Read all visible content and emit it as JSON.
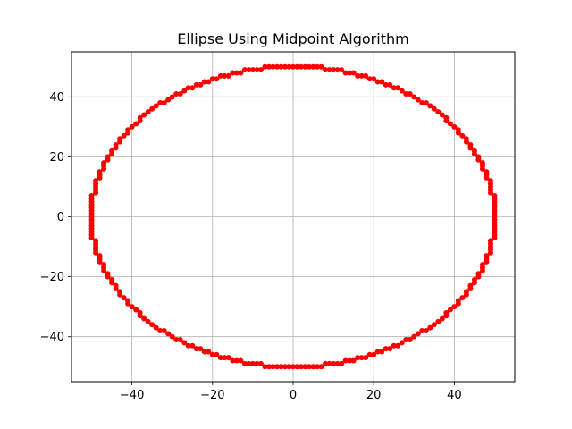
{
  "chart_data": {
    "type": "scatter",
    "title": "Ellipse Using Midpoint Algorithm",
    "xlabel": "",
    "ylabel": "",
    "xlim": [
      -55,
      55
    ],
    "ylim": [
      -55,
      55
    ],
    "xticks": [
      -40,
      -20,
      0,
      20,
      40
    ],
    "yticks": [
      -40,
      -20,
      0,
      20,
      40
    ],
    "xtick_labels": [
      "−40",
      "−20",
      "0",
      "20",
      "40"
    ],
    "ytick_labels": [
      "−40",
      "−20",
      "0",
      "20",
      "40"
    ],
    "grid": true,
    "marker_color": "#ff0000",
    "series": [
      {
        "semi_axis_x": 50,
        "semi_axis_y": 50,
        "center": [
          0,
          0
        ],
        "points": [
          [
            0,
            50
          ],
          [
            1,
            50
          ],
          [
            2,
            50
          ],
          [
            3,
            50
          ],
          [
            4,
            50
          ],
          [
            5,
            50
          ],
          [
            6,
            50
          ],
          [
            7,
            50
          ],
          [
            8,
            49
          ],
          [
            9,
            49
          ],
          [
            10,
            49
          ],
          [
            11,
            49
          ],
          [
            12,
            49
          ],
          [
            13,
            48
          ],
          [
            14,
            48
          ],
          [
            15,
            48
          ],
          [
            16,
            47
          ],
          [
            17,
            47
          ],
          [
            18,
            47
          ],
          [
            19,
            46
          ],
          [
            20,
            46
          ],
          [
            21,
            45
          ],
          [
            22,
            45
          ],
          [
            23,
            44
          ],
          [
            24,
            44
          ],
          [
            25,
            43
          ],
          [
            26,
            43
          ],
          [
            27,
            42
          ],
          [
            28,
            41
          ],
          [
            29,
            41
          ],
          [
            30,
            40
          ],
          [
            31,
            39
          ],
          [
            32,
            38
          ],
          [
            33,
            38
          ],
          [
            34,
            37
          ],
          [
            35,
            36
          ],
          [
            36,
            35
          ],
          [
            37,
            34
          ],
          [
            38,
            33
          ],
          [
            38,
            32
          ],
          [
            39,
            31
          ],
          [
            40,
            30
          ],
          [
            41,
            29
          ],
          [
            41,
            28
          ],
          [
            42,
            27
          ],
          [
            43,
            26
          ],
          [
            43,
            25
          ],
          [
            44,
            24
          ],
          [
            44,
            23
          ],
          [
            45,
            22
          ],
          [
            45,
            21
          ],
          [
            46,
            20
          ],
          [
            46,
            19
          ],
          [
            47,
            18
          ],
          [
            47,
            17
          ],
          [
            47,
            16
          ],
          [
            48,
            15
          ],
          [
            48,
            14
          ],
          [
            48,
            13
          ],
          [
            49,
            12
          ],
          [
            49,
            11
          ],
          [
            49,
            10
          ],
          [
            49,
            9
          ],
          [
            49,
            8
          ],
          [
            50,
            7
          ],
          [
            50,
            6
          ],
          [
            50,
            5
          ],
          [
            50,
            4
          ],
          [
            50,
            3
          ],
          [
            50,
            2
          ],
          [
            50,
            1
          ],
          [
            50,
            0
          ]
        ]
      }
    ]
  }
}
